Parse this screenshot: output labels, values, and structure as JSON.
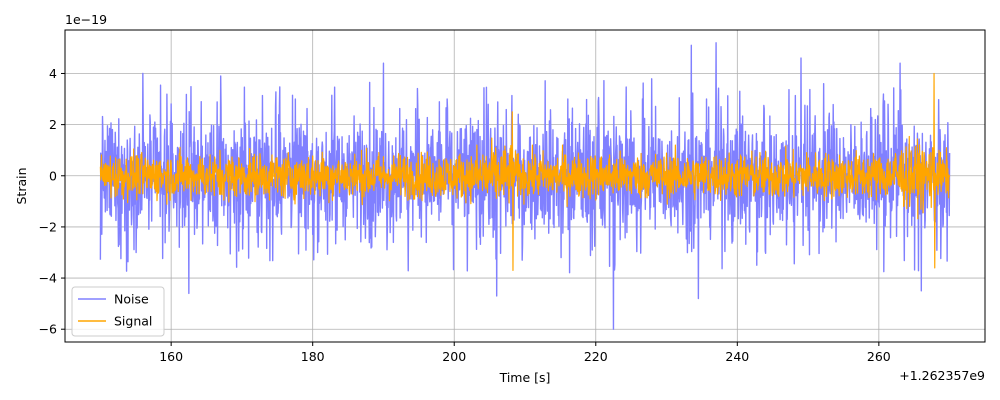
{
  "chart_data": {
    "type": "line",
    "xlabel": "Time [s]",
    "ylabel": "Strain",
    "y_exponent_label": "1e−19",
    "x_offset_label": "+1.262357e9",
    "xlim": [
      145,
      275
    ],
    "ylim": [
      -6.5,
      5.7
    ],
    "x_ticks": [
      160,
      180,
      200,
      220,
      240,
      260
    ],
    "x_tick_labels": [
      "160",
      "180",
      "200",
      "220",
      "240",
      "260"
    ],
    "y_ticks": [
      -6,
      -4,
      -2,
      0,
      2,
      4
    ],
    "y_tick_labels": [
      "−6",
      "−4",
      "−2",
      "0",
      "2",
      "4"
    ],
    "grid": true,
    "legend_position": "lower-left",
    "x_range": [
      150,
      270
    ],
    "series": [
      {
        "name": "Noise",
        "color": "#8080ff",
        "typical_amplitude": 2.0,
        "max": 5.2,
        "min": -6.0,
        "peaks": [
          {
            "x": 156.0,
            "y": 4.0
          },
          {
            "x": 162.5,
            "y": -4.6
          },
          {
            "x": 167.0,
            "y": 3.9
          },
          {
            "x": 190.0,
            "y": 4.4
          },
          {
            "x": 206.0,
            "y": -4.7
          },
          {
            "x": 222.5,
            "y": -6.0
          },
          {
            "x": 233.5,
            "y": 5.1
          },
          {
            "x": 237.0,
            "y": 5.2
          },
          {
            "x": 234.5,
            "y": -4.8
          },
          {
            "x": 249.0,
            "y": 4.6
          },
          {
            "x": 263.0,
            "y": 4.4
          },
          {
            "x": 266.0,
            "y": -4.5
          }
        ]
      },
      {
        "name": "Signal",
        "color": "#ffa500",
        "typical_amplitude": 0.8,
        "peaks": [
          {
            "x": 208.2,
            "y": 2.5
          },
          {
            "x": 208.3,
            "y": -3.7
          },
          {
            "x": 267.8,
            "y": 4.0
          },
          {
            "x": 267.9,
            "y": -3.6
          }
        ]
      }
    ]
  }
}
